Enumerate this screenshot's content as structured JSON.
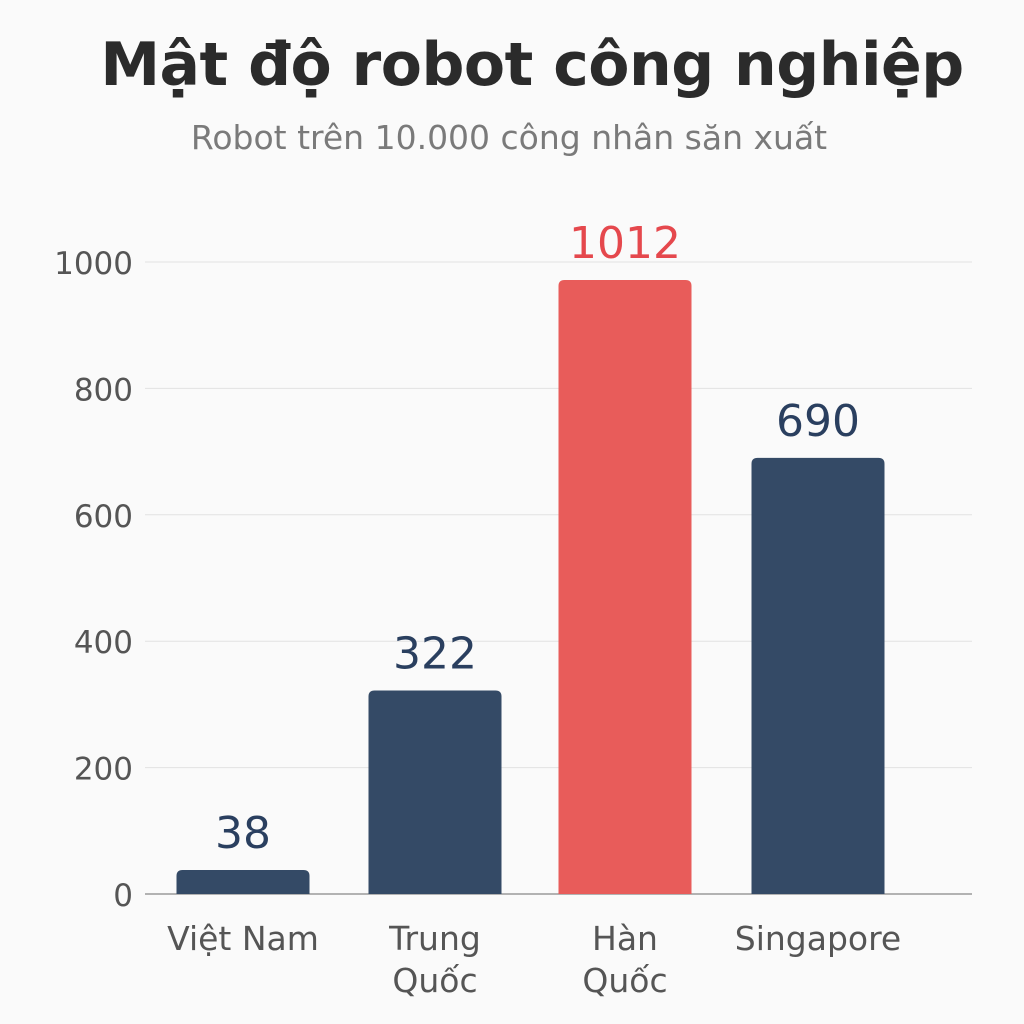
{
  "chart_data": {
    "type": "bar",
    "title": "Mật độ robot công nghiệp",
    "subtitle": "Robot trên 10.000 công nhân săn xuất",
    "categories": [
      [
        "Việt Nam"
      ],
      [
        "Trung",
        "Quốc"
      ],
      [
        "Hàn",
        "Quốc"
      ],
      [
        "Singapore"
      ]
    ],
    "values": [
      38,
      322,
      1012,
      690
    ],
    "value_labels": [
      "38",
      "322",
      "1012",
      "690"
    ],
    "ylim": [
      0,
      1000
    ],
    "yticks": [
      "0",
      "200",
      "400",
      "600",
      "800",
      "1000"
    ],
    "grid": true,
    "colors": {
      "bar": "#344a66",
      "highlight": "#e85c5a",
      "label": "#2a3f5f",
      "highlight_label": "#e5484d",
      "tick": "#555555",
      "grid": "#e2e2e2",
      "axis": "#999999"
    },
    "highlight_index": 2
  }
}
